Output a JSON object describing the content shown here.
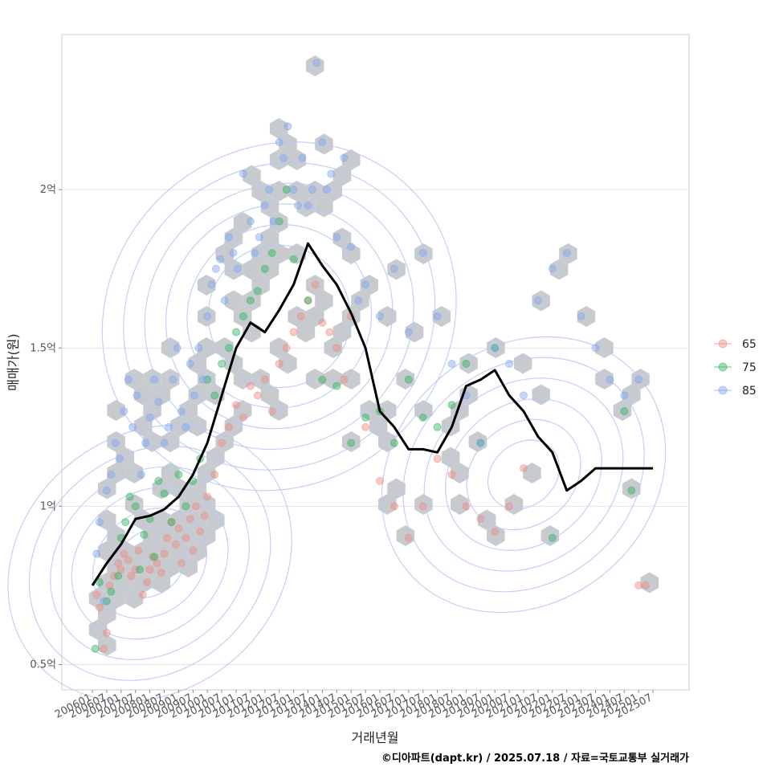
{
  "chart_data": {
    "type": "scatter",
    "xlabel": "거래년월",
    "ylabel": "매매가(원)",
    "caption": "©디아파트(dapt.kr) / 2025.07.18 / 자료=국토교통부 실거래가",
    "x_ticks": [
      "200601",
      "200607",
      "200701",
      "200707",
      "200801",
      "200807",
      "200901",
      "200907",
      "201001",
      "201007",
      "201101",
      "201107",
      "201201",
      "201207",
      "201301",
      "201307",
      "201401",
      "201407",
      "201501",
      "201507",
      "201601",
      "201607",
      "201701",
      "201707",
      "201801",
      "201807",
      "201901",
      "201907",
      "202001",
      "202007",
      "202101",
      "202107",
      "202201",
      "202207",
      "202301",
      "202307",
      "202401",
      "202407",
      "202501",
      "202507"
    ],
    "y_ticks": [
      {
        "value": 50000000,
        "label": "0.5억"
      },
      {
        "value": 100000000,
        "label": "1억"
      },
      {
        "value": 150000000,
        "label": "1.5억"
      },
      {
        "value": 200000000,
        "label": "2억"
      }
    ],
    "ylim": [
      42000000,
      249000000
    ],
    "grid": true,
    "legend_position": "right",
    "legend": [
      {
        "name": "65",
        "color": "#f08a80"
      },
      {
        "name": "75",
        "color": "#2fb35a"
      },
      {
        "name": "85",
        "color": "#7fa6ef"
      }
    ],
    "trend_line": {
      "color": "#000000",
      "x_index": [
        0,
        1,
        2,
        3,
        4,
        5,
        6,
        7,
        8,
        9,
        10,
        11,
        12,
        13,
        14,
        15,
        16,
        17,
        18,
        19,
        20,
        21,
        22,
        23,
        24,
        25,
        26,
        27,
        28,
        29,
        30,
        31,
        32,
        33,
        34,
        35,
        36,
        37,
        38,
        39
      ],
      "values": [
        75000000,
        82000000,
        88000000,
        96000000,
        97000000,
        99000000,
        103000000,
        110000000,
        120000000,
        135000000,
        150000000,
        158000000,
        155000000,
        162000000,
        170000000,
        183000000,
        176000000,
        170000000,
        161000000,
        150000000,
        130000000,
        125000000,
        118000000,
        118000000,
        117000000,
        125000000,
        138000000,
        140000000,
        143000000,
        135000000,
        130000000,
        122000000,
        117000000,
        105000000,
        108000000,
        112000000,
        112000000,
        112000000,
        112000000,
        112000000
      ]
    },
    "series": [
      {
        "name": "65",
        "points": [
          [
            0.3,
            72000000
          ],
          [
            0.5,
            68000000
          ],
          [
            0.8,
            55000000
          ],
          [
            1.0,
            60000000
          ],
          [
            1.2,
            75000000
          ],
          [
            1.5,
            78000000
          ],
          [
            1.8,
            82000000
          ],
          [
            2.0,
            80000000
          ],
          [
            2.2,
            85000000
          ],
          [
            2.5,
            83000000
          ],
          [
            2.7,
            78000000
          ],
          [
            3.0,
            80000000
          ],
          [
            3.2,
            86000000
          ],
          [
            3.5,
            72000000
          ],
          [
            3.8,
            76000000
          ],
          [
            4.0,
            80000000
          ],
          [
            4.2,
            84000000
          ],
          [
            4.5,
            82000000
          ],
          [
            4.8,
            79000000
          ],
          [
            5.0,
            85000000
          ],
          [
            5.2,
            90000000
          ],
          [
            5.5,
            95000000
          ],
          [
            5.8,
            88000000
          ],
          [
            6.0,
            93000000
          ],
          [
            6.2,
            82000000
          ],
          [
            6.5,
            90000000
          ],
          [
            6.8,
            96000000
          ],
          [
            7.0,
            86000000
          ],
          [
            7.2,
            100000000
          ],
          [
            7.5,
            92000000
          ],
          [
            7.8,
            97000000
          ],
          [
            8.0,
            103000000
          ],
          [
            8.5,
            110000000
          ],
          [
            9.0,
            120000000
          ],
          [
            9.5,
            125000000
          ],
          [
            10.0,
            132000000
          ],
          [
            10.5,
            128000000
          ],
          [
            11.0,
            138000000
          ],
          [
            11.5,
            135000000
          ],
          [
            12.0,
            140000000
          ],
          [
            12.5,
            130000000
          ],
          [
            13.0,
            145000000
          ],
          [
            13.5,
            150000000
          ],
          [
            14.0,
            155000000
          ],
          [
            14.5,
            160000000
          ],
          [
            15.0,
            165000000
          ],
          [
            15.5,
            170000000
          ],
          [
            16.0,
            158000000
          ],
          [
            16.5,
            155000000
          ],
          [
            17.0,
            150000000
          ],
          [
            17.5,
            140000000
          ],
          [
            18.0,
            160000000
          ],
          [
            19.0,
            125000000
          ],
          [
            20.0,
            108000000
          ],
          [
            21.0,
            100000000
          ],
          [
            22.0,
            90000000
          ],
          [
            23.0,
            100000000
          ],
          [
            24.0,
            115000000
          ],
          [
            25.0,
            110000000
          ],
          [
            26.0,
            100000000
          ],
          [
            27.0,
            96000000
          ],
          [
            28.0,
            92000000
          ],
          [
            29.0,
            100000000
          ],
          [
            30.0,
            112000000
          ],
          [
            38.0,
            75000000
          ],
          [
            38.5,
            75000000
          ]
        ]
      },
      {
        "name": "75",
        "points": [
          [
            0.2,
            55000000
          ],
          [
            0.5,
            76000000
          ],
          [
            1.0,
            70000000
          ],
          [
            1.3,
            73000000
          ],
          [
            1.8,
            78000000
          ],
          [
            2.0,
            90000000
          ],
          [
            2.3,
            95000000
          ],
          [
            2.6,
            103000000
          ],
          [
            3.0,
            100000000
          ],
          [
            3.3,
            80000000
          ],
          [
            3.6,
            91000000
          ],
          [
            4.0,
            96000000
          ],
          [
            4.3,
            84000000
          ],
          [
            4.6,
            108000000
          ],
          [
            5.0,
            104000000
          ],
          [
            5.5,
            95000000
          ],
          [
            6.0,
            110000000
          ],
          [
            6.5,
            100000000
          ],
          [
            7.0,
            108000000
          ],
          [
            7.5,
            115000000
          ],
          [
            8.0,
            140000000
          ],
          [
            8.5,
            135000000
          ],
          [
            9.0,
            145000000
          ],
          [
            9.5,
            150000000
          ],
          [
            10.0,
            155000000
          ],
          [
            10.5,
            160000000
          ],
          [
            11.0,
            165000000
          ],
          [
            11.5,
            168000000
          ],
          [
            12.0,
            175000000
          ],
          [
            12.5,
            180000000
          ],
          [
            13.0,
            190000000
          ],
          [
            13.5,
            200000000
          ],
          [
            14.0,
            178000000
          ],
          [
            15.0,
            165000000
          ],
          [
            16.0,
            140000000
          ],
          [
            17.0,
            138000000
          ],
          [
            18.0,
            120000000
          ],
          [
            19.0,
            128000000
          ],
          [
            20.0,
            130000000
          ],
          [
            21.0,
            120000000
          ],
          [
            22.0,
            140000000
          ],
          [
            23.0,
            128000000
          ],
          [
            24.0,
            125000000
          ],
          [
            25.0,
            132000000
          ],
          [
            26.0,
            145000000
          ],
          [
            27.0,
            120000000
          ],
          [
            28.0,
            150000000
          ],
          [
            32.0,
            90000000
          ],
          [
            37.0,
            130000000
          ],
          [
            37.5,
            105000000
          ]
        ]
      },
      {
        "name": "85",
        "points": [
          [
            0.3,
            85000000
          ],
          [
            0.5,
            95000000
          ],
          [
            0.8,
            70000000
          ],
          [
            1.0,
            105000000
          ],
          [
            1.3,
            110000000
          ],
          [
            1.6,
            120000000
          ],
          [
            1.9,
            115000000
          ],
          [
            2.2,
            130000000
          ],
          [
            2.5,
            140000000
          ],
          [
            2.8,
            125000000
          ],
          [
            3.1,
            135000000
          ],
          [
            3.4,
            110000000
          ],
          [
            3.7,
            120000000
          ],
          [
            4.0,
            128000000
          ],
          [
            4.3,
            140000000
          ],
          [
            4.6,
            133000000
          ],
          [
            5.0,
            120000000
          ],
          [
            5.3,
            125000000
          ],
          [
            5.6,
            140000000
          ],
          [
            5.9,
            150000000
          ],
          [
            6.2,
            130000000
          ],
          [
            6.5,
            125000000
          ],
          [
            6.8,
            145000000
          ],
          [
            7.1,
            135000000
          ],
          [
            7.4,
            150000000
          ],
          [
            7.7,
            140000000
          ],
          [
            8.0,
            160000000
          ],
          [
            8.3,
            170000000
          ],
          [
            8.6,
            175000000
          ],
          [
            8.9,
            178000000
          ],
          [
            9.2,
            165000000
          ],
          [
            9.5,
            185000000
          ],
          [
            9.8,
            180000000
          ],
          [
            10.1,
            175000000
          ],
          [
            10.5,
            205000000
          ],
          [
            11.0,
            190000000
          ],
          [
            11.3,
            180000000
          ],
          [
            11.6,
            185000000
          ],
          [
            12.0,
            195000000
          ],
          [
            12.3,
            200000000
          ],
          [
            12.6,
            190000000
          ],
          [
            13.0,
            215000000
          ],
          [
            13.3,
            210000000
          ],
          [
            13.6,
            220000000
          ],
          [
            14.0,
            200000000
          ],
          [
            14.3,
            195000000
          ],
          [
            14.6,
            210000000
          ],
          [
            15.0,
            195000000
          ],
          [
            15.3,
            200000000
          ],
          [
            15.6,
            240000000
          ],
          [
            16.0,
            215000000
          ],
          [
            16.3,
            200000000
          ],
          [
            16.6,
            205000000
          ],
          [
            17.0,
            185000000
          ],
          [
            17.5,
            210000000
          ],
          [
            18.0,
            182000000
          ],
          [
            18.5,
            165000000
          ],
          [
            19.0,
            170000000
          ],
          [
            20.0,
            160000000
          ],
          [
            21.0,
            175000000
          ],
          [
            22.0,
            155000000
          ],
          [
            23.0,
            180000000
          ],
          [
            24.0,
            160000000
          ],
          [
            25.0,
            145000000
          ],
          [
            26.0,
            135000000
          ],
          [
            27.0,
            120000000
          ],
          [
            28.0,
            150000000
          ],
          [
            29.0,
            145000000
          ],
          [
            30.0,
            135000000
          ],
          [
            31.0,
            165000000
          ],
          [
            32.0,
            175000000
          ],
          [
            33.0,
            180000000
          ],
          [
            34.0,
            160000000
          ],
          [
            35.0,
            150000000
          ],
          [
            36.0,
            140000000
          ],
          [
            37.0,
            135000000
          ],
          [
            38.0,
            140000000
          ]
        ]
      }
    ],
    "density_overlay": {
      "type": "hexbin+contour",
      "hex_color": "#c4c8cc",
      "contour_color": "#b9c8f2"
    }
  }
}
